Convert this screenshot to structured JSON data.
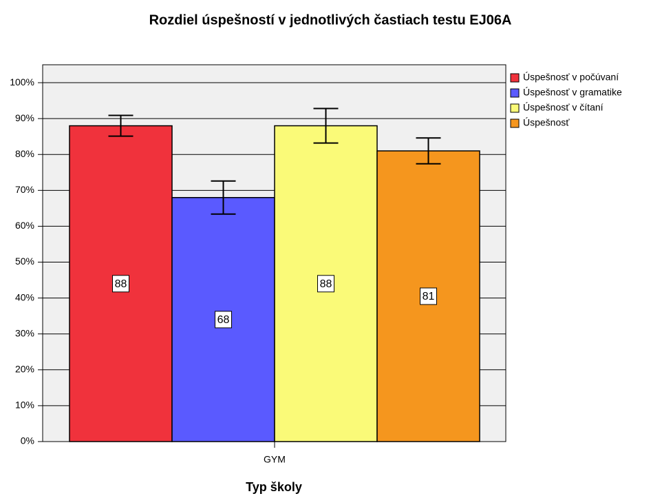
{
  "chart_data": {
    "type": "bar",
    "title": "Rozdiel úspešností v jednotlivých častiach testu EJ06A",
    "x_label": "Typ školy",
    "categories": [
      "GYM"
    ],
    "series": [
      {
        "name": "Úspešnosť v počúvaní",
        "color": "#f0323c",
        "values": [
          88
        ],
        "errors": [
          2.9
        ]
      },
      {
        "name": "Úspešnosť v gramatike",
        "color": "#5a5aff",
        "values": [
          68
        ],
        "errors": [
          4.6
        ]
      },
      {
        "name": "Úspešnosť v čítaní",
        "color": "#fafa78",
        "values": [
          88
        ],
        "errors": [
          4.8
        ]
      },
      {
        "name": "Úspešnosť",
        "color": "#f5961e",
        "values": [
          81
        ],
        "errors": [
          3.6
        ]
      }
    ],
    "ylim": [
      0,
      105
    ],
    "yticks": [
      {
        "value": 0,
        "label": "0%"
      },
      {
        "value": 10,
        "label": "10%"
      },
      {
        "value": 20,
        "label": "20%"
      },
      {
        "value": 30,
        "label": "30%"
      },
      {
        "value": 40,
        "label": "40%"
      },
      {
        "value": 50,
        "label": "50%"
      },
      {
        "value": 60,
        "label": "60%"
      },
      {
        "value": 70,
        "label": "70%"
      },
      {
        "value": 80,
        "label": "80%"
      },
      {
        "value": 90,
        "label": "90%"
      },
      {
        "value": 100,
        "label": "100%"
      }
    ],
    "grid": true,
    "legend": "top-right"
  }
}
